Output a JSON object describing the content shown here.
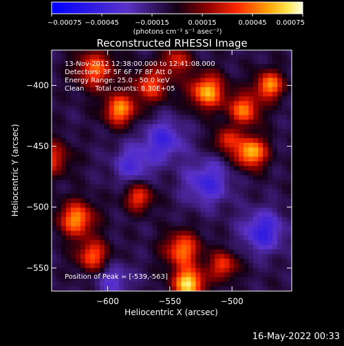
{
  "chart_data": {
    "type": "heatmap",
    "title": "Reconstructed RHESSI Image",
    "xlabel": "Heliocentric X (arcsec)",
    "ylabel": "Heliocentric Y (arcsec)",
    "xlim": [
      -645,
      -452
    ],
    "ylim": [
      -569,
      -371
    ],
    "x_ticks": [
      {
        "value": -600,
        "label": "−600"
      },
      {
        "value": -550,
        "label": "−550"
      },
      {
        "value": -500,
        "label": "−500"
      }
    ],
    "y_ticks": [
      {
        "value": -400,
        "label": "−400"
      },
      {
        "value": -450,
        "label": "−450"
      },
      {
        "value": -500,
        "label": "−500"
      },
      {
        "value": -550,
        "label": "−550"
      }
    ],
    "colorbar": {
      "range": [
        -0.00075,
        0.00075
      ],
      "ticks": [
        {
          "value": -0.00075,
          "label": "−0.00075"
        },
        {
          "value": -0.00045,
          "label": "−0.00045"
        },
        {
          "value": -0.00015,
          "label": "−0.00015"
        },
        {
          "value": 0.00015,
          "label": "0.00015"
        },
        {
          "value": 0.00045,
          "label": "0.00045"
        },
        {
          "value": 0.00075,
          "label": "0.00075"
        }
      ],
      "unit_label": "(photons cm⁻² s⁻¹ asec⁻²)"
    },
    "annotations": [
      "13-Nov-2012 12:38:00.000 to 12:41:08.000",
      "Detectors: 3F 5F 6F 7F 8F  Att 0",
      "Energy Range: 25.0 - 50.0 keV",
      "Clean     Total counts: 8.30E+05"
    ],
    "peak_text": "Position of Peak = [-539,-563]",
    "peak": [
      -539,
      -563
    ],
    "blobs": [
      {
        "x": -610,
        "y": -387,
        "amp": 0.0005,
        "w": 11
      },
      {
        "x": -590,
        "y": -420,
        "amp": 0.0006,
        "w": 9
      },
      {
        "x": -565,
        "y": -400,
        "amp": 0.00045,
        "w": 10
      },
      {
        "x": -545,
        "y": -380,
        "amp": 0.0004,
        "w": 8
      },
      {
        "x": -520,
        "y": -405,
        "amp": 0.00065,
        "w": 10
      },
      {
        "x": -490,
        "y": -420,
        "amp": 0.00055,
        "w": 9
      },
      {
        "x": -470,
        "y": -400,
        "amp": 0.0006,
        "w": 8
      },
      {
        "x": -485,
        "y": -455,
        "amp": 0.0007,
        "w": 9
      },
      {
        "x": -505,
        "y": -445,
        "amp": 0.0004,
        "w": 7
      },
      {
        "x": -625,
        "y": -510,
        "amp": 0.0006,
        "w": 10
      },
      {
        "x": -612,
        "y": -540,
        "amp": 0.0005,
        "w": 9
      },
      {
        "x": -575,
        "y": -492,
        "amp": 0.00045,
        "w": 8
      },
      {
        "x": -540,
        "y": -535,
        "amp": 0.00055,
        "w": 10
      },
      {
        "x": -535,
        "y": -563,
        "amp": 0.00075,
        "w": 9
      },
      {
        "x": -507,
        "y": -548,
        "amp": 0.00045,
        "w": 8
      },
      {
        "x": -645,
        "y": -460,
        "amp": 0.0004,
        "w": 10
      },
      {
        "x": -555,
        "y": -445,
        "amp": -0.00035,
        "w": 12
      },
      {
        "x": -580,
        "y": -465,
        "amp": -0.0003,
        "w": 11
      },
      {
        "x": -520,
        "y": -480,
        "amp": -0.00035,
        "w": 13
      },
      {
        "x": -475,
        "y": -520,
        "amp": -0.0004,
        "w": 12
      },
      {
        "x": -595,
        "y": -560,
        "amp": -0.00025,
        "w": 10
      }
    ]
  },
  "footer": {
    "timestamp": "16-May-2022 00:33"
  }
}
